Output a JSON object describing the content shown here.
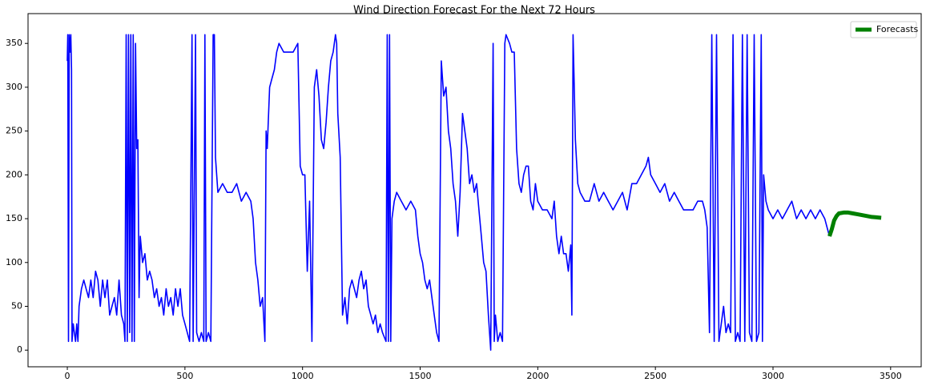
{
  "chart_data": {
    "type": "line",
    "title": "Wind Direction Forecast For the Next 72 Hours",
    "xlim": [
      -167,
      3630
    ],
    "ylim": [
      -19,
      384
    ],
    "xticks": [
      0,
      500,
      1000,
      1500,
      2000,
      2500,
      3000,
      3500
    ],
    "yticks": [
      0,
      50,
      100,
      150,
      200,
      250,
      300,
      350
    ],
    "legend": "upper right",
    "series": [
      {
        "color": "#0000ff",
        "x": [
          0,
          2,
          5,
          8,
          12,
          15,
          18,
          20,
          25,
          30,
          35,
          40,
          45,
          50,
          60,
          70,
          80,
          90,
          100,
          110,
          120,
          130,
          140,
          150,
          160,
          170,
          180,
          190,
          200,
          210,
          220,
          230,
          240,
          245,
          250,
          255,
          260,
          265,
          270,
          275,
          280,
          285,
          290,
          295,
          300,
          305,
          310,
          320,
          330,
          340,
          350,
          360,
          370,
          380,
          390,
          400,
          410,
          420,
          430,
          440,
          450,
          460,
          470,
          480,
          490,
          500,
          510,
          520,
          530,
          535,
          545,
          550,
          560,
          570,
          580,
          585,
          590,
          600,
          610,
          620,
          625,
          630,
          640,
          660,
          680,
          700,
          720,
          740,
          760,
          780,
          790,
          800,
          810,
          820,
          830,
          840,
          845,
          850,
          860,
          870,
          880,
          890,
          900,
          920,
          940,
          960,
          980,
          990,
          1000,
          1010,
          1020,
          1030,
          1040,
          1050,
          1060,
          1070,
          1080,
          1090,
          1100,
          1110,
          1120,
          1130,
          1140,
          1145,
          1150,
          1160,
          1170,
          1180,
          1190,
          1200,
          1210,
          1220,
          1230,
          1240,
          1250,
          1260,
          1270,
          1280,
          1290,
          1300,
          1310,
          1320,
          1330,
          1340,
          1355,
          1360,
          1365,
          1370,
          1375,
          1380,
          1390,
          1400,
          1420,
          1440,
          1460,
          1480,
          1490,
          1500,
          1510,
          1520,
          1530,
          1540,
          1550,
          1560,
          1570,
          1580,
          1590,
          1600,
          1610,
          1620,
          1630,
          1640,
          1650,
          1660,
          1670,
          1680,
          1690,
          1700,
          1710,
          1720,
          1730,
          1740,
          1750,
          1760,
          1770,
          1780,
          1790,
          1800,
          1810,
          1815,
          1820,
          1830,
          1840,
          1850,
          1860,
          1865,
          1880,
          1890,
          1900,
          1910,
          1920,
          1930,
          1940,
          1950,
          1960,
          1970,
          1980,
          1990,
          2000,
          2020,
          2040,
          2060,
          2070,
          2080,
          2090,
          2100,
          2110,
          2120,
          2130,
          2140,
          2145,
          2150,
          2155,
          2160,
          2170,
          2180,
          2200,
          2220,
          2240,
          2260,
          2280,
          2300,
          2320,
          2340,
          2360,
          2380,
          2400,
          2420,
          2440,
          2460,
          2470,
          2480,
          2500,
          2520,
          2540,
          2560,
          2580,
          2600,
          2620,
          2640,
          2660,
          2680,
          2700,
          2710,
          2720,
          2730,
          2740,
          2750,
          2760,
          2770,
          2780,
          2790,
          2800,
          2810,
          2820,
          2830,
          2840,
          2850,
          2860,
          2870,
          2880,
          2890,
          2900,
          2910,
          2920,
          2930,
          2940,
          2950,
          2955,
          2960,
          2970,
          2980,
          3000,
          3020,
          3040,
          3060,
          3080,
          3100,
          3120,
          3140,
          3160,
          3180,
          3200,
          3220,
          3230,
          3240
        ],
        "values": [
          330,
          360,
          10,
          360,
          340,
          360,
          320,
          10,
          30,
          20,
          10,
          30,
          10,
          50,
          70,
          80,
          70,
          60,
          80,
          60,
          90,
          80,
          50,
          80,
          60,
          80,
          40,
          50,
          60,
          40,
          80,
          40,
          30,
          10,
          360,
          10,
          360,
          20,
          360,
          10,
          360,
          10,
          350,
          230,
          240,
          60,
          130,
          100,
          110,
          80,
          90,
          80,
          60,
          70,
          50,
          60,
          40,
          70,
          50,
          60,
          40,
          70,
          50,
          70,
          40,
          30,
          20,
          10,
          360,
          10,
          360,
          20,
          10,
          20,
          10,
          360,
          10,
          20,
          10,
          360,
          360,
          220,
          180,
          190,
          180,
          180,
          190,
          170,
          180,
          170,
          150,
          100,
          80,
          50,
          60,
          10,
          250,
          230,
          300,
          310,
          320,
          340,
          350,
          340,
          340,
          340,
          350,
          210,
          200,
          200,
          90,
          170,
          10,
          300,
          320,
          290,
          240,
          230,
          260,
          300,
          330,
          340,
          360,
          350,
          270,
          220,
          40,
          60,
          30,
          70,
          80,
          70,
          60,
          80,
          90,
          70,
          80,
          50,
          40,
          30,
          40,
          20,
          30,
          20,
          10,
          360,
          10,
          360,
          10,
          150,
          170,
          180,
          170,
          160,
          170,
          160,
          130,
          110,
          100,
          80,
          70,
          80,
          60,
          40,
          20,
          10,
          330,
          290,
          300,
          250,
          230,
          190,
          170,
          130,
          180,
          270,
          250,
          230,
          190,
          200,
          180,
          190,
          160,
          130,
          100,
          90,
          40,
          0,
          350,
          10,
          40,
          10,
          20,
          10,
          350,
          360,
          350,
          340,
          340,
          230,
          190,
          180,
          200,
          210,
          210,
          170,
          160,
          190,
          170,
          160,
          160,
          150,
          170,
          130,
          110,
          130,
          110,
          110,
          90,
          120,
          40,
          360,
          300,
          240,
          190,
          180,
          170,
          170,
          190,
          170,
          180,
          170,
          160,
          170,
          180,
          160,
          190,
          190,
          200,
          210,
          220,
          200,
          190,
          180,
          190,
          170,
          180,
          170,
          160,
          160,
          160,
          170,
          170,
          160,
          140,
          20,
          360,
          10,
          360,
          10,
          30,
          50,
          20,
          30,
          20,
          360,
          10,
          20,
          10,
          360,
          10,
          360,
          20,
          10,
          360,
          10,
          20,
          360,
          10,
          200,
          170,
          160,
          150,
          160,
          150,
          160,
          170,
          150,
          160,
          150,
          160,
          150,
          160,
          150,
          140,
          130
        ]
      },
      {
        "name": "Forecasts",
        "color": "#008000",
        "x": [
          3240,
          3250,
          3260,
          3270,
          3280,
          3300,
          3320,
          3340,
          3360,
          3380,
          3400,
          3420,
          3440,
          3460
        ],
        "values": [
          130,
          138,
          148,
          153,
          156,
          157,
          157,
          156,
          155,
          154,
          153,
          152,
          151.5,
          151
        ]
      }
    ]
  }
}
